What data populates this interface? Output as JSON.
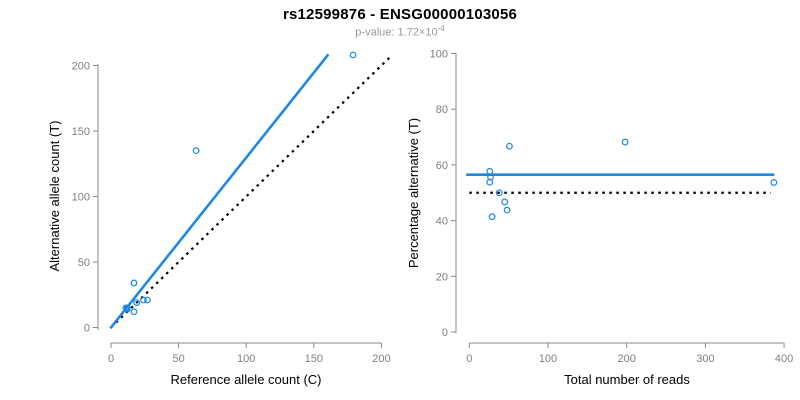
{
  "header": {
    "title": "rs12599876 - ENSG00000103056",
    "subtitle_base": "p-value: 1.72×10",
    "subtitle_exponent": "-4"
  },
  "colors": {
    "accent_blue": "#1e87e5",
    "line_black": "#000000",
    "axis_gray": "#8a8a8a",
    "tick_label_gray": "#7f7f7f",
    "axis_title_black": "#000000",
    "subtitle_gray": "#9a9a9a",
    "background": "#ffffff"
  },
  "chart_data": [
    {
      "type": "scatter",
      "panel": "left",
      "xlabel": "Reference allele count (C)",
      "ylabel": "Alternative allele count (T)",
      "xlim": [
        0,
        200
      ],
      "ylim": [
        0,
        200
      ],
      "xticks": [
        0,
        50,
        100,
        150,
        200
      ],
      "yticks": [
        0,
        50,
        100,
        150,
        200
      ],
      "grid": false,
      "legend": false,
      "point_style": "open-circle",
      "points": [
        [
          11,
          15
        ],
        [
          12,
          15
        ],
        [
          12,
          14
        ],
        [
          19,
          19
        ],
        [
          24,
          21
        ],
        [
          27,
          21
        ],
        [
          17,
          12
        ],
        [
          17,
          34
        ],
        [
          63,
          135
        ],
        [
          179,
          208
        ]
      ],
      "lines": [
        {
          "name": "identity-line",
          "style": "dotted",
          "color": "#000000",
          "width": 2.2,
          "slope": 1,
          "intercept": 0,
          "from": [
            0,
            0
          ],
          "to": [
            207,
            207
          ]
        },
        {
          "name": "fitted-ratio-line",
          "style": "solid",
          "color": "#1e87e5",
          "width": 2.6,
          "slope": 1.297,
          "intercept": 0,
          "from": [
            -0.5,
            -0.6
          ],
          "to": [
            160.8,
            208.5
          ]
        }
      ]
    },
    {
      "type": "scatter",
      "panel": "right",
      "xlabel": "Total number of reads",
      "ylabel": "Percentage alternative (T)",
      "xlim": [
        0,
        400
      ],
      "ylim": [
        0,
        100
      ],
      "xticks": [
        0,
        100,
        200,
        300,
        400
      ],
      "yticks": [
        0,
        20,
        40,
        60,
        80,
        100
      ],
      "grid": false,
      "legend": false,
      "point_style": "open-circle",
      "points": [
        [
          26,
          57.7
        ],
        [
          27,
          55.6
        ],
        [
          26,
          53.8
        ],
        [
          38,
          50.0
        ],
        [
          45,
          46.7
        ],
        [
          48,
          43.8
        ],
        [
          29,
          41.4
        ],
        [
          51,
          66.7
        ],
        [
          198,
          68.2
        ],
        [
          387,
          53.7
        ]
      ],
      "lines": [
        {
          "name": "fifty-percent-line",
          "style": "dotted",
          "color": "#000000",
          "width": 2.2,
          "value": 50,
          "from": [
            0,
            50
          ],
          "to": [
            383,
            50
          ]
        },
        {
          "name": "mean-percentage-line",
          "style": "solid",
          "color": "#1e87e5",
          "width": 2.6,
          "value": 56.5,
          "from": [
            -4,
            56.5
          ],
          "to": [
            387.5,
            56.5
          ]
        }
      ]
    }
  ]
}
